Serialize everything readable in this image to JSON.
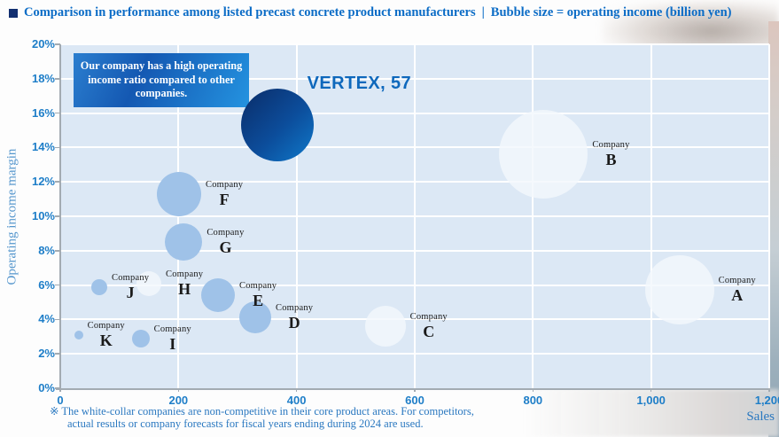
{
  "header": {
    "bullet": "■",
    "title": "Comparison in performance among listed precast concrete product manufacturers",
    "separator": "|",
    "subtitle": "Bubble size = operating income (billion yen)"
  },
  "callout": {
    "text": "Our company has a high operating income ratio compared to other companies."
  },
  "footnote": {
    "line1": "※ The white-collar companies are non-competitive in their core product areas. For competitors,",
    "line2": "actual results or company forecasts for fiscal years ending during 2024 are used."
  },
  "colors": {
    "title_blue": "#0b6cc6",
    "tick_blue": "#1e7ec8",
    "axis_title_blue": "#5596cd",
    "footnote_blue": "#2a78c0",
    "plot_background": "#dce8f5",
    "gridline": "#ffffff",
    "bubble_blue": "#9fc2e8",
    "bubble_light": "#f3f8fd",
    "vertex_gradient_dark": "#0a2c68",
    "vertex_gradient_light": "#0f79ca",
    "callout_gradient": [
      "#2b7ecf",
      "#1458b2",
      "#2493e0"
    ],
    "company_label_black": "#1a1a1a"
  },
  "chart_data": {
    "type": "scatter",
    "subtype": "bubble",
    "title": "Comparison in performance among listed precast concrete product manufacturers",
    "bubble_size_note": "Bubble size = operating income (billion yen)",
    "xlabel": "Sales",
    "ylabel": "Operating income margin",
    "xlim": [
      0,
      1200
    ],
    "ylim": [
      0,
      20
    ],
    "grid": true,
    "x_ticks": [
      {
        "value": 0,
        "label": "0"
      },
      {
        "value": 200,
        "label": "200"
      },
      {
        "value": 400,
        "label": "400"
      },
      {
        "value": 600,
        "label": "600"
      },
      {
        "value": 800,
        "label": "800"
      },
      {
        "value": 1000,
        "label": "1,000"
      },
      {
        "value": 1200,
        "label": "1,200"
      }
    ],
    "y_ticks": [
      {
        "value": 0,
        "label": "0%"
      },
      {
        "value": 2,
        "label": "2%"
      },
      {
        "value": 4,
        "label": "4%"
      },
      {
        "value": 6,
        "label": "6%"
      },
      {
        "value": 8,
        "label": "8%"
      },
      {
        "value": 10,
        "label": "10%"
      },
      {
        "value": 12,
        "label": "12%"
      },
      {
        "value": 14,
        "label": "14%"
      },
      {
        "value": 16,
        "label": "16%"
      },
      {
        "value": 18,
        "label": "18%"
      },
      {
        "value": 20,
        "label": "20%"
      }
    ],
    "points": [
      {
        "name": "Company A",
        "company_word": "Company",
        "letter": "A",
        "sales": 1048,
        "margin_pct": 5.7,
        "radius_px": 39,
        "style": "light"
      },
      {
        "name": "Company B",
        "company_word": "Company",
        "letter": "B",
        "sales": 818,
        "margin_pct": 13.6,
        "radius_px": 50,
        "style": "light"
      },
      {
        "name": "Company C",
        "company_word": "Company",
        "letter": "C",
        "sales": 550,
        "margin_pct": 3.6,
        "radius_px": 23,
        "style": "light"
      },
      {
        "name": "Company D",
        "company_word": "Company",
        "letter": "D",
        "sales": 330,
        "margin_pct": 4.1,
        "radius_px": 18,
        "style": "blue"
      },
      {
        "name": "Company E",
        "company_word": "Company",
        "letter": "E",
        "sales": 267,
        "margin_pct": 5.4,
        "radius_px": 19,
        "style": "blue"
      },
      {
        "name": "Company F",
        "company_word": "Company",
        "letter": "F",
        "sales": 201,
        "margin_pct": 11.3,
        "radius_px": 25,
        "style": "blue"
      },
      {
        "name": "Company G",
        "company_word": "Company",
        "letter": "G",
        "sales": 209,
        "margin_pct": 8.5,
        "radius_px": 21,
        "style": "blue"
      },
      {
        "name": "Company H",
        "company_word": "Company",
        "letter": "H",
        "sales": 150,
        "margin_pct": 6.1,
        "radius_px": 14,
        "style": "light"
      },
      {
        "name": "Company I",
        "company_word": "Company",
        "letter": "I",
        "sales": 136,
        "margin_pct": 2.9,
        "radius_px": 10,
        "style": "blue"
      },
      {
        "name": "Company J",
        "company_word": "Company",
        "letter": "J",
        "sales": 66,
        "margin_pct": 5.9,
        "radius_px": 9,
        "style": "blue"
      },
      {
        "name": "Company K",
        "company_word": "Company",
        "letter": "K",
        "sales": 31,
        "margin_pct": 3.1,
        "radius_px": 5,
        "style": "blue"
      },
      {
        "name": "VERTEX",
        "label": "VERTEX, 57",
        "sales": 367,
        "margin_pct": 15.3,
        "operating_income_billion_yen": 57,
        "radius_px": 41,
        "style": "vertex"
      }
    ]
  }
}
